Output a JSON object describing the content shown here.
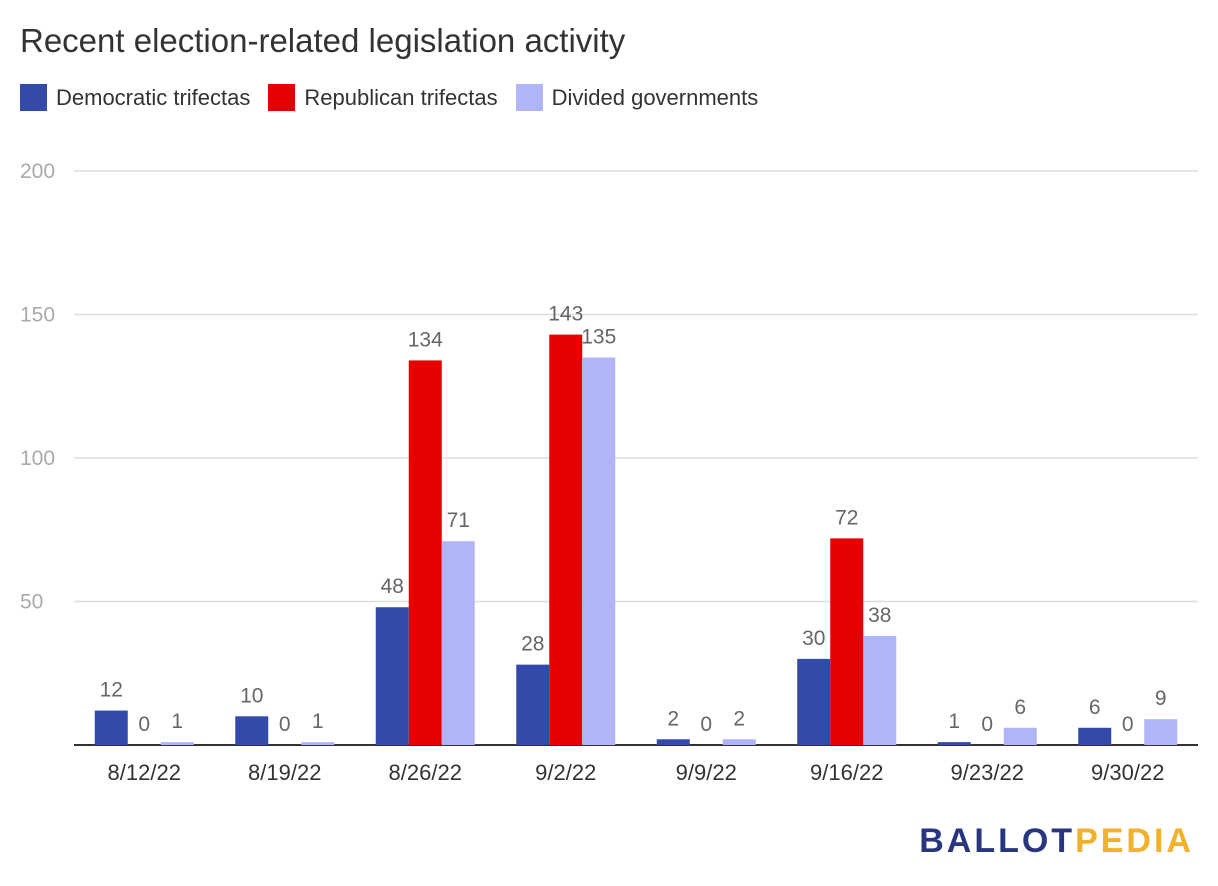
{
  "chart_data": {
    "type": "bar",
    "title": "Recent election-related legislation activity",
    "categories": [
      "8/12/22",
      "8/19/22",
      "8/26/22",
      "9/2/22",
      "9/9/22",
      "9/16/22",
      "9/23/22",
      "9/30/22"
    ],
    "series": [
      {
        "name": "Democratic trifectas",
        "color": "#334aab",
        "values": [
          12,
          10,
          48,
          28,
          2,
          30,
          1,
          6
        ]
      },
      {
        "name": "Republican trifectas",
        "color": "#e60000",
        "values": [
          0,
          0,
          134,
          143,
          0,
          72,
          0,
          0
        ]
      },
      {
        "name": "Divided governments",
        "color": "#b0b5fa",
        "values": [
          1,
          1,
          71,
          135,
          2,
          38,
          6,
          9
        ]
      }
    ],
    "ylim": [
      0,
      200
    ],
    "yticks": [
      50,
      100,
      150,
      200
    ],
    "xlabel": "",
    "ylabel": "",
    "grid": true,
    "legend_position": "top-left"
  },
  "logo": {
    "part1": "BALLOT",
    "part2": "PEDIA",
    "colors": [
      "#29367f",
      "#f1b12c"
    ]
  }
}
